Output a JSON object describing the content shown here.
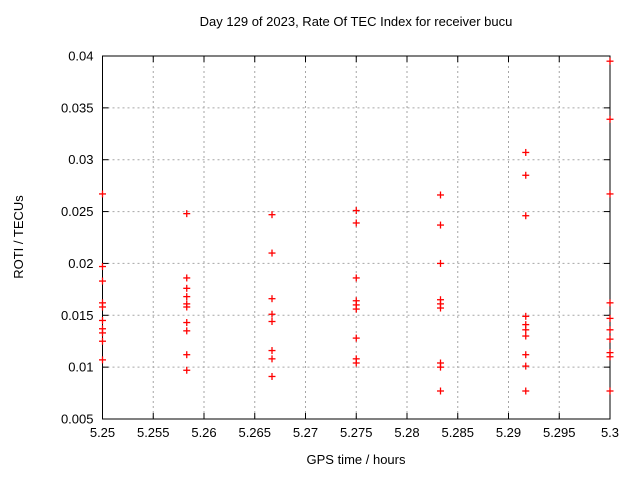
{
  "chart_data": {
    "type": "scatter",
    "title": "Day 129 of 2023, Rate Of TEC Index for receiver bucu",
    "xlabel": "GPS time / hours",
    "ylabel": "ROTI / TECUs",
    "xlim": [
      5.25,
      5.3
    ],
    "ylim": [
      0.005,
      0.04
    ],
    "grid": true,
    "legend": "none",
    "marker": {
      "shape": "plus",
      "color": "#ff0000",
      "size": 7
    },
    "grid_color": "#a6a6a6",
    "axis_color": "#000000",
    "xticks": [
      {
        "v": 5.25,
        "label": "5.25"
      },
      {
        "v": 5.255,
        "label": "5.255"
      },
      {
        "v": 5.26,
        "label": "5.26"
      },
      {
        "v": 5.265,
        "label": "5.265"
      },
      {
        "v": 5.27,
        "label": "5.27"
      },
      {
        "v": 5.275,
        "label": "5.275"
      },
      {
        "v": 5.28,
        "label": "5.28"
      },
      {
        "v": 5.285,
        "label": "5.285"
      },
      {
        "v": 5.29,
        "label": "5.29"
      },
      {
        "v": 5.295,
        "label": "5.295"
      },
      {
        "v": 5.3,
        "label": "5.3"
      }
    ],
    "yticks": [
      {
        "v": 0.005,
        "label": "0.005"
      },
      {
        "v": 0.01,
        "label": "0.01"
      },
      {
        "v": 0.015,
        "label": "0.015"
      },
      {
        "v": 0.02,
        "label": "0.02"
      },
      {
        "v": 0.025,
        "label": "0.025"
      },
      {
        "v": 0.03,
        "label": "0.03"
      },
      {
        "v": 0.035,
        "label": "0.035"
      },
      {
        "v": 0.04,
        "label": "0.04"
      }
    ],
    "series": [
      {
        "name": "ROTI",
        "color": "#ff0000",
        "points": [
          [
            5.25,
            0.0267
          ],
          [
            5.25,
            0.0197
          ],
          [
            5.25,
            0.0183
          ],
          [
            5.25,
            0.0162
          ],
          [
            5.25,
            0.0158
          ],
          [
            5.25,
            0.0145
          ],
          [
            5.25,
            0.0137
          ],
          [
            5.25,
            0.0133
          ],
          [
            5.25,
            0.0125
          ],
          [
            5.25,
            0.0107
          ],
          [
            5.2583,
            0.0248
          ],
          [
            5.2583,
            0.0186
          ],
          [
            5.2583,
            0.0176
          ],
          [
            5.2583,
            0.0168
          ],
          [
            5.2583,
            0.0161
          ],
          [
            5.2583,
            0.0158
          ],
          [
            5.2583,
            0.0143
          ],
          [
            5.2583,
            0.0135
          ],
          [
            5.2583,
            0.0112
          ],
          [
            5.2583,
            0.0097
          ],
          [
            5.2667,
            0.0247
          ],
          [
            5.2667,
            0.021
          ],
          [
            5.2667,
            0.0166
          ],
          [
            5.2667,
            0.0151
          ],
          [
            5.2667,
            0.0144
          ],
          [
            5.2667,
            0.0116
          ],
          [
            5.2667,
            0.0108
          ],
          [
            5.2667,
            0.0091
          ],
          [
            5.275,
            0.0251
          ],
          [
            5.275,
            0.0239
          ],
          [
            5.275,
            0.0186
          ],
          [
            5.275,
            0.0164
          ],
          [
            5.275,
            0.016
          ],
          [
            5.275,
            0.0156
          ],
          [
            5.275,
            0.0128
          ],
          [
            5.275,
            0.0108
          ],
          [
            5.275,
            0.0104
          ],
          [
            5.2833,
            0.0266
          ],
          [
            5.2833,
            0.0237
          ],
          [
            5.2833,
            0.02
          ],
          [
            5.2833,
            0.0165
          ],
          [
            5.2833,
            0.0161
          ],
          [
            5.2833,
            0.0157
          ],
          [
            5.2833,
            0.0104
          ],
          [
            5.2833,
            0.01
          ],
          [
            5.2833,
            0.0077
          ],
          [
            5.2917,
            0.0307
          ],
          [
            5.2917,
            0.0285
          ],
          [
            5.2917,
            0.0246
          ],
          [
            5.2917,
            0.0149
          ],
          [
            5.2917,
            0.0141
          ],
          [
            5.2917,
            0.0136
          ],
          [
            5.2917,
            0.013
          ],
          [
            5.2917,
            0.0112
          ],
          [
            5.2917,
            0.0101
          ],
          [
            5.2917,
            0.0077
          ],
          [
            5.3,
            0.0395
          ],
          [
            5.3,
            0.0339
          ],
          [
            5.3,
            0.0267
          ],
          [
            5.3,
            0.0162
          ],
          [
            5.3,
            0.0147
          ],
          [
            5.3,
            0.0136
          ],
          [
            5.3,
            0.0127
          ],
          [
            5.3,
            0.0114
          ],
          [
            5.3,
            0.011
          ],
          [
            5.3,
            0.0077
          ]
        ]
      }
    ]
  }
}
